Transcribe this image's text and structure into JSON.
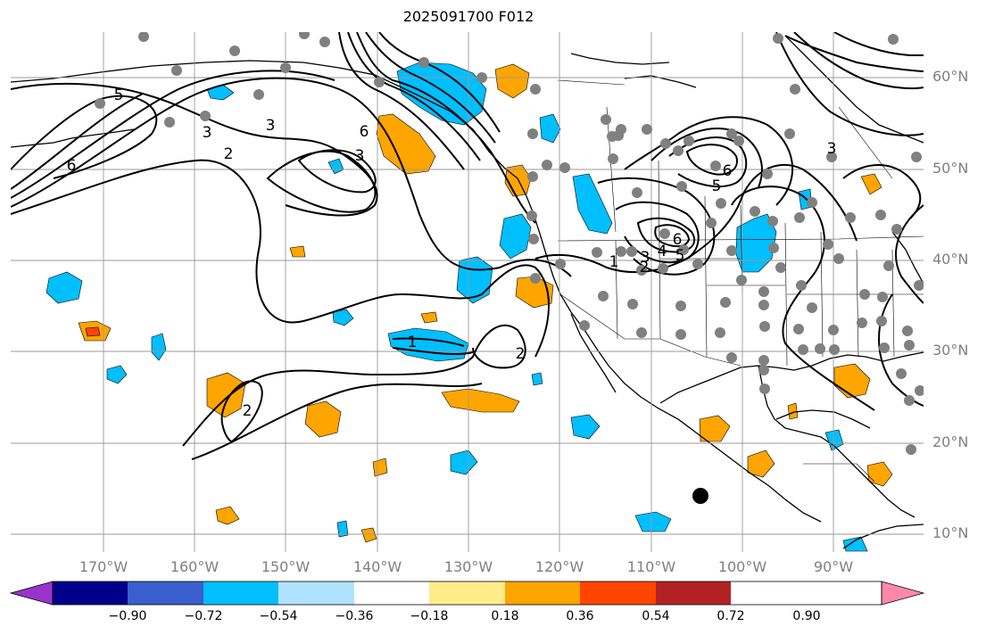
{
  "title": "2025091700 F012",
  "colors": {
    "continent_line": "#000000",
    "grid": "#9a9a9a",
    "contour": "#000000",
    "station": "#808080",
    "storm_marker": "#000000"
  },
  "latitude_labels": [
    "60°N",
    "50°N",
    "40°N",
    "30°N",
    "20°N",
    "10°N"
  ],
  "longitude_labels": [
    "170°W",
    "160°W",
    "150°W",
    "140°W",
    "130°W",
    "120°W",
    "110°W",
    "100°W",
    "90°W"
  ],
  "contour_labels": [
    "5",
    "6",
    "3",
    "2",
    "3",
    "6",
    "3",
    "1",
    "2",
    "2",
    "6",
    "5",
    "4",
    "3",
    "6",
    "5",
    "2",
    "1",
    "3"
  ],
  "colorbar": {
    "ticks": [
      "−0.90",
      "−0.72",
      "−0.54",
      "−0.36",
      "−0.18",
      "0.18",
      "0.36",
      "0.54",
      "0.72",
      "0.90"
    ],
    "colors": [
      "#9933cc",
      "#00008b",
      "#3a5fcd",
      "#00bfff",
      "#b0e2ff",
      "#ffffff",
      "#ffec8b",
      "#ffa500",
      "#ff4500",
      "#b22222",
      "#ff88aa"
    ]
  }
}
